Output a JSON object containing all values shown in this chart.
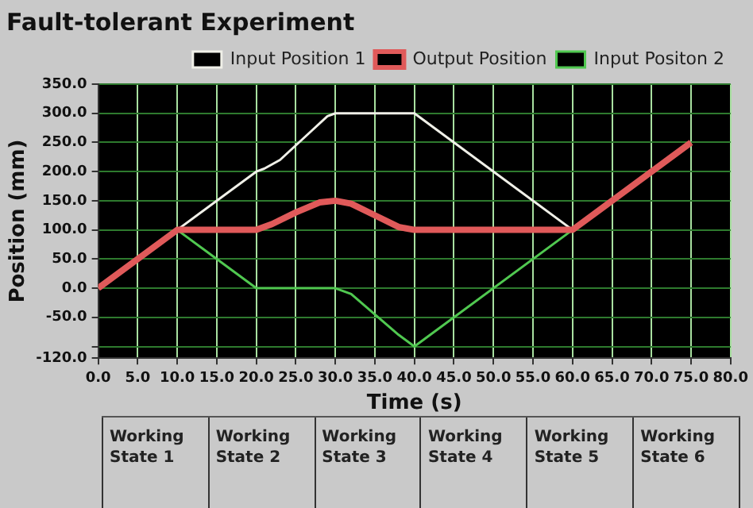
{
  "chart_data": {
    "type": "line",
    "title": "Fault-tolerant Experiment",
    "xlabel": "Time (s)",
    "ylabel": "Position (mm)",
    "series": [
      {
        "name": "Input Position 1",
        "color": "#f0f0e8",
        "x": [
          0,
          10,
          20,
          21,
          23,
          27,
          29,
          30,
          40,
          60,
          75
        ],
        "values": [
          0,
          100,
          200,
          205,
          220,
          270,
          295,
          300,
          300,
          100,
          250
        ]
      },
      {
        "name": "Output Position",
        "color": "#e05a5a",
        "x": [
          0,
          10,
          20,
          22,
          25,
          28,
          30,
          32,
          35,
          38,
          40,
          60,
          75
        ],
        "values": [
          0,
          100,
          100,
          110,
          130,
          147,
          150,
          145,
          125,
          105,
          100,
          100,
          250
        ]
      },
      {
        "name": "Input Positon 2",
        "color": "#50c850",
        "x": [
          0,
          10,
          20,
          30,
          32,
          35,
          38,
          40,
          60,
          75
        ],
        "values": [
          0,
          100,
          0,
          0,
          -10,
          -45,
          -80,
          -100,
          100,
          250
        ]
      }
    ],
    "xlim": [
      0,
      80
    ],
    "xticks": [
      {
        "value": 0,
        "label": "0.0"
      },
      {
        "value": 5,
        "label": "5.0"
      },
      {
        "value": 10,
        "label": "10.0"
      },
      {
        "value": 15,
        "label": "15.0"
      },
      {
        "value": 20,
        "label": "20.0"
      },
      {
        "value": 25,
        "label": "25.0"
      },
      {
        "value": 30,
        "label": "30.0"
      },
      {
        "value": 35,
        "label": "35.0"
      },
      {
        "value": 40,
        "label": "40.0"
      },
      {
        "value": 45,
        "label": "45.0"
      },
      {
        "value": 50,
        "label": "50.0"
      },
      {
        "value": 55,
        "label": "55.0"
      },
      {
        "value": 60,
        "label": "60.0"
      },
      {
        "value": 65,
        "label": "65.0"
      },
      {
        "value": 70,
        "label": "70.0"
      },
      {
        "value": 75,
        "label": "75.0"
      },
      {
        "value": 80,
        "label": "80.0"
      }
    ],
    "ylim": [
      -120,
      350
    ],
    "yticks": [
      {
        "value": -120,
        "label": "-120.0"
      },
      {
        "value": -100,
        "label": null
      },
      {
        "value": -50,
        "label": "-50.0"
      },
      {
        "value": 0,
        "label": "0.0"
      },
      {
        "value": 50,
        "label": "50.0"
      },
      {
        "value": 100,
        "label": "100.0"
      },
      {
        "value": 150,
        "label": "150.0"
      },
      {
        "value": 200,
        "label": "200.0"
      },
      {
        "value": 250,
        "label": "250.0"
      },
      {
        "value": 300,
        "label": "300.0"
      },
      {
        "value": 350,
        "label": "350.0"
      }
    ],
    "grid": true,
    "legend": "top right",
    "marker": "none",
    "line_style": "solid",
    "annotations": [
      "Working State 1",
      "Working State 2",
      "Working State 3",
      "Working State 4",
      "Working State 5",
      "Working State 6"
    ]
  }
}
